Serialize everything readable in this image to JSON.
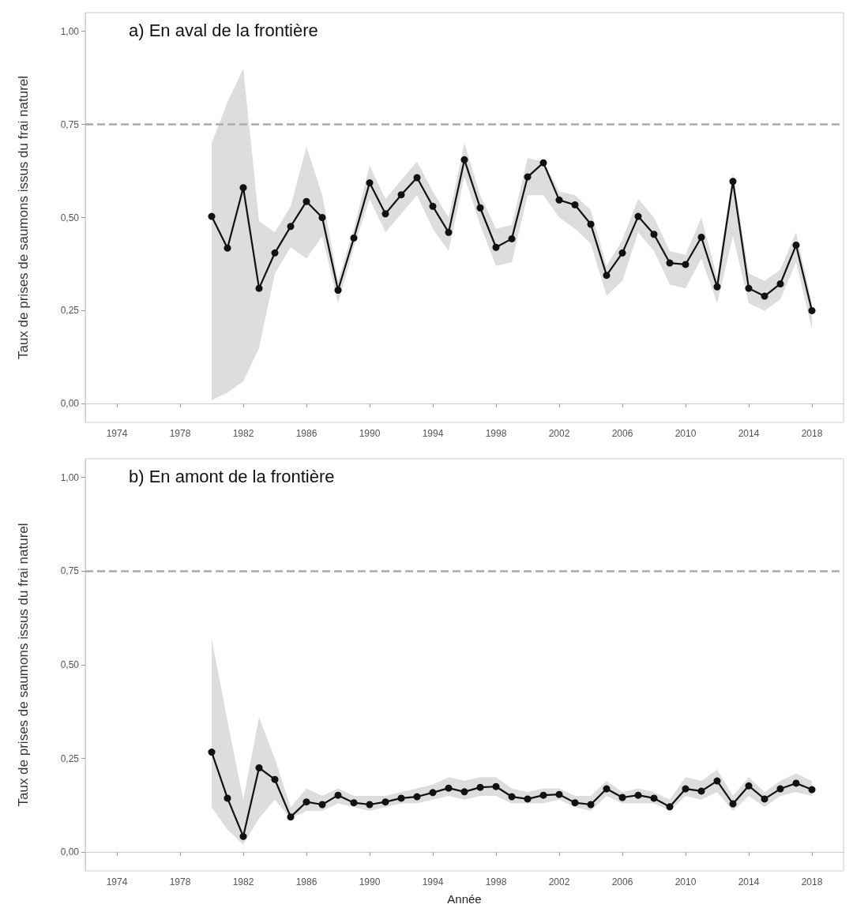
{
  "chart_data": [
    {
      "type": "line",
      "title": "a) En aval de la frontière",
      "ylabel": "Taux de prises de saumons issus du frai naturel",
      "x": [
        1980,
        1981,
        1982,
        1983,
        1984,
        1985,
        1986,
        1987,
        1988,
        1989,
        1990,
        1991,
        1992,
        1993,
        1994,
        1995,
        1996,
        1997,
        1998,
        1999,
        2000,
        2001,
        2002,
        2003,
        2004,
        2005,
        2006,
        2007,
        2008,
        2009,
        2010,
        2011,
        2012,
        2013,
        2014,
        2015,
        2016,
        2017,
        2018
      ],
      "series": [
        {
          "color": "#111111",
          "values": [
            0.503,
            0.418,
            0.58,
            0.31,
            0.405,
            0.476,
            0.543,
            0.5,
            0.305,
            0.445,
            0.593,
            0.51,
            0.561,
            0.607,
            0.53,
            0.46,
            0.655,
            0.526,
            0.42,
            0.443,
            0.609,
            0.647,
            0.547,
            0.534,
            0.482,
            0.345,
            0.405,
            0.503,
            0.455,
            0.378,
            0.374,
            0.447,
            0.314,
            0.597,
            0.31,
            0.289,
            0.322,
            0.426,
            0.25
          ],
          "lower": [
            0.01,
            0.03,
            0.06,
            0.15,
            0.35,
            0.42,
            0.39,
            0.45,
            0.27,
            0.42,
            0.55,
            0.46,
            0.51,
            0.56,
            0.47,
            0.41,
            0.61,
            0.48,
            0.37,
            0.38,
            0.56,
            0.56,
            0.5,
            0.47,
            0.43,
            0.29,
            0.33,
            0.46,
            0.41,
            0.32,
            0.31,
            0.39,
            0.27,
            0.45,
            0.27,
            0.25,
            0.28,
            0.38,
            0.2
          ],
          "upper": [
            0.7,
            0.81,
            0.9,
            0.49,
            0.46,
            0.53,
            0.69,
            0.56,
            0.33,
            0.47,
            0.64,
            0.55,
            0.6,
            0.65,
            0.57,
            0.5,
            0.7,
            0.56,
            0.47,
            0.48,
            0.66,
            0.65,
            0.57,
            0.56,
            0.52,
            0.37,
            0.44,
            0.55,
            0.5,
            0.41,
            0.4,
            0.5,
            0.34,
            0.62,
            0.35,
            0.33,
            0.36,
            0.46,
            0.27
          ]
        }
      ],
      "xlim": [
        1972,
        2020
      ],
      "xticks": [
        1974,
        1978,
        1982,
        1986,
        1990,
        1994,
        1998,
        2002,
        2006,
        2010,
        2014,
        2018
      ],
      "ylim": [
        -0.05,
        1.05
      ],
      "yticks": [
        {
          "value": 0,
          "label": "0,00"
        },
        {
          "value": 0.25,
          "label": "0,25"
        },
        {
          "value": 0.5,
          "label": "0,50"
        },
        {
          "value": 0.75,
          "label": "0,75"
        },
        {
          "value": 1,
          "label": "1,00"
        }
      ],
      "ref_lines": [
        {
          "axis": "y",
          "value": 0.75,
          "color": "#aaaaaa",
          "line_style": "dashed"
        }
      ],
      "marker": "circle",
      "line_style": "solid"
    },
    {
      "type": "line",
      "title": "b) En amont de la frontière",
      "xlabel": "Année",
      "ylabel": "Taux de prises de saumons issus du frai naturel",
      "x": [
        1980,
        1981,
        1982,
        1983,
        1984,
        1985,
        1986,
        1987,
        1988,
        1989,
        1990,
        1991,
        1992,
        1993,
        1994,
        1995,
        1996,
        1997,
        1998,
        1999,
        2000,
        2001,
        2002,
        2003,
        2004,
        2005,
        2006,
        2007,
        2008,
        2009,
        2010,
        2011,
        2012,
        2013,
        2014,
        2015,
        2016,
        2017,
        2018
      ],
      "series": [
        {
          "color": "#111111",
          "values": [
            0.267,
            0.144,
            0.042,
            0.225,
            0.194,
            0.094,
            0.134,
            0.127,
            0.152,
            0.132,
            0.127,
            0.134,
            0.144,
            0.148,
            0.159,
            0.171,
            0.161,
            0.173,
            0.175,
            0.148,
            0.142,
            0.152,
            0.154,
            0.132,
            0.127,
            0.169,
            0.146,
            0.152,
            0.144,
            0.121,
            0.169,
            0.163,
            0.19,
            0.129,
            0.177,
            0.142,
            0.169,
            0.184,
            0.167
          ],
          "lower": [
            0.12,
            0.06,
            0.02,
            0.09,
            0.14,
            0.09,
            0.11,
            0.11,
            0.13,
            0.12,
            0.11,
            0.12,
            0.13,
            0.13,
            0.14,
            0.15,
            0.14,
            0.15,
            0.15,
            0.13,
            0.13,
            0.13,
            0.14,
            0.12,
            0.11,
            0.15,
            0.13,
            0.13,
            0.13,
            0.11,
            0.15,
            0.14,
            0.16,
            0.11,
            0.15,
            0.12,
            0.15,
            0.16,
            0.15
          ],
          "upper": [
            0.57,
            0.35,
            0.14,
            0.36,
            0.25,
            0.12,
            0.17,
            0.15,
            0.17,
            0.15,
            0.15,
            0.15,
            0.16,
            0.17,
            0.18,
            0.2,
            0.19,
            0.2,
            0.2,
            0.17,
            0.16,
            0.17,
            0.17,
            0.15,
            0.15,
            0.19,
            0.16,
            0.17,
            0.16,
            0.14,
            0.2,
            0.19,
            0.22,
            0.15,
            0.2,
            0.16,
            0.19,
            0.21,
            0.19
          ]
        }
      ],
      "xlim": [
        1972,
        2020
      ],
      "xticks": [
        1974,
        1978,
        1982,
        1986,
        1990,
        1994,
        1998,
        2002,
        2006,
        2010,
        2014,
        2018
      ],
      "ylim": [
        -0.05,
        1.05
      ],
      "yticks": [
        {
          "value": 0,
          "label": "0,00"
        },
        {
          "value": 0.25,
          "label": "0,25"
        },
        {
          "value": 0.5,
          "label": "0,50"
        },
        {
          "value": 0.75,
          "label": "0,75"
        },
        {
          "value": 1,
          "label": "1,00"
        }
      ],
      "ref_lines": [
        {
          "axis": "y",
          "value": 0.75,
          "color": "#aaaaaa",
          "line_style": "dashed"
        }
      ],
      "marker": "circle",
      "line_style": "solid"
    }
  ]
}
